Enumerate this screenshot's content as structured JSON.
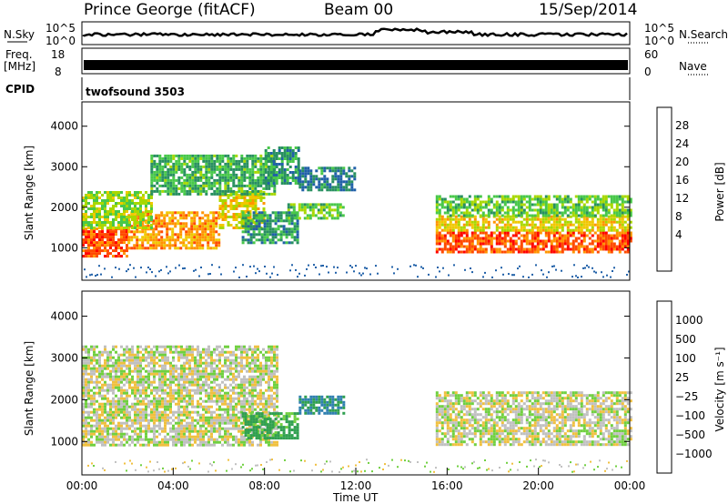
{
  "header": {
    "station": "Prince George (fitACF)",
    "beam": "Beam 00",
    "date": "15/Sep/2014"
  },
  "panels": {
    "nsky": {
      "label": "N.Sky",
      "ticks": [
        "10^5",
        "10^0"
      ],
      "right_label": "N.Search",
      "right_ticks": [
        "10^5",
        "10^0"
      ]
    },
    "freq": {
      "label_line1": "Freq.",
      "label_line2": "[MHz]",
      "ticks": [
        "18",
        "8"
      ],
      "right_label": "Nave",
      "right_ticks": [
        "60",
        "0"
      ]
    },
    "cpid": {
      "label": "CPID",
      "value": "twofsound 3503"
    }
  },
  "chart_data": [
    {
      "type": "heatmap",
      "name": "power",
      "ylabel": "Slant Range [km]",
      "y_ticks": [
        1000,
        2000,
        3000,
        4000
      ],
      "ylim": [
        200,
        4600
      ],
      "xlim": [
        0,
        24
      ],
      "colorbar": {
        "label": "Power [dB]",
        "ticks": [
          "28",
          "24",
          "20",
          "16",
          "12",
          "8",
          "4"
        ],
        "colors": [
          "#ff0000",
          "#ff4a00",
          "#ff9400",
          "#f0c800",
          "#a8d800",
          "#48c84a",
          "#289060",
          "#2060a8",
          "#0000ff"
        ]
      },
      "regions": [
        {
          "t0": 0.0,
          "t1": 2.0,
          "r0": 800,
          "r1": 1500,
          "level": 26
        },
        {
          "t0": 2.0,
          "t1": 6.0,
          "r0": 1000,
          "r1": 1900,
          "level": 22
        },
        {
          "t0": 6.0,
          "t1": 8.0,
          "r0": 1500,
          "r1": 2400,
          "level": 18
        },
        {
          "t0": 0.0,
          "t1": 3.0,
          "r0": 1500,
          "r1": 2400,
          "level": 14
        },
        {
          "t0": 3.0,
          "t1": 8.5,
          "r0": 2300,
          "r1": 3300,
          "level": 10
        },
        {
          "t0": 8.0,
          "t1": 9.5,
          "r0": 2600,
          "r1": 3500,
          "level": 8
        },
        {
          "t0": 9.5,
          "t1": 12.0,
          "r0": 2400,
          "r1": 3000,
          "level": 6
        },
        {
          "t0": 9.0,
          "t1": 11.5,
          "r0": 1700,
          "r1": 2100,
          "level": 12
        },
        {
          "t0": 7.0,
          "t1": 9.5,
          "r0": 1100,
          "r1": 1900,
          "level": 8
        },
        {
          "t0": 15.5,
          "t1": 24.0,
          "r0": 900,
          "r1": 1400,
          "level": 26
        },
        {
          "t0": 15.5,
          "t1": 24.0,
          "r0": 1400,
          "r1": 1800,
          "level": 18
        },
        {
          "t0": 15.5,
          "t1": 24.0,
          "r0": 1800,
          "r1": 2300,
          "level": 12
        }
      ]
    },
    {
      "type": "heatmap",
      "name": "velocity",
      "ylabel": "Slant Range [km]",
      "y_ticks": [
        1000,
        2000,
        3000,
        4000
      ],
      "ylim": [
        200,
        4600
      ],
      "xlim": [
        0,
        24
      ],
      "x_ticks": [
        "00:00",
        "04:00",
        "08:00",
        "12:00",
        "16:00",
        "20:00",
        "00:00"
      ],
      "xlabel": "Time UT",
      "colorbar": {
        "label": "Velocity [m s⁻¹]",
        "ticks": [
          "1000",
          "500",
          "100",
          "25",
          "−25",
          "−100",
          "−500",
          "−1000"
        ],
        "colors": [
          "#2040d0",
          "#3080b0",
          "#30a050",
          "#70d040",
          "#c0c0c0",
          "#f0c040",
          "#f08000",
          "#f04000",
          "#e00000"
        ]
      },
      "regions": [
        {
          "t0": 0.0,
          "t1": 8.5,
          "r0": 900,
          "r1": 3300,
          "level": 0
        },
        {
          "t0": 9.5,
          "t1": 11.5,
          "r0": 1700,
          "r1": 2100,
          "level": 300
        },
        {
          "t0": 7.0,
          "t1": 9.5,
          "r0": 1100,
          "r1": 1700,
          "level": 80
        },
        {
          "t0": 15.5,
          "t1": 24.0,
          "r0": 900,
          "r1": 2200,
          "level": 0
        }
      ]
    }
  ]
}
